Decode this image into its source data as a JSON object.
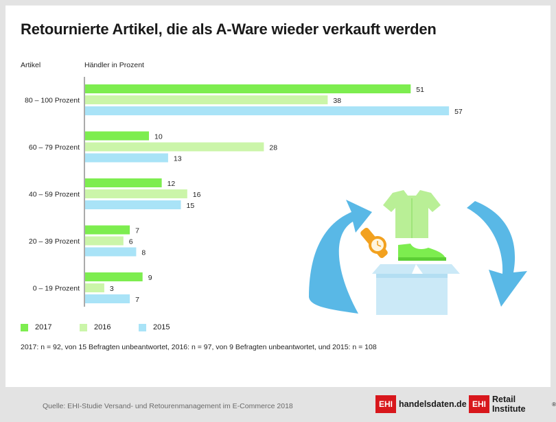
{
  "title": "Retournierte Artikel, die als A-Ware wieder verkauft werden",
  "headers": {
    "category": "Artikel",
    "value": "Händler in Prozent"
  },
  "colors": {
    "2017": "#7ded4f",
    "2016": "#cbf5a9",
    "2015": "#a9e3f7",
    "illustration_blue": "#59b8e6",
    "illustration_green": "#9fe57a",
    "illustration_orange": "#f2a11f",
    "brand_red": "#d8171c"
  },
  "chart_data": {
    "type": "bar",
    "orientation": "horizontal",
    "title": "Retournierte Artikel, die als A-Ware wieder verkauft werden",
    "xlabel": "Händler in Prozent",
    "ylabel": "Artikel",
    "categories": [
      "80 – 100 Prozent",
      "60 – 79 Prozent",
      "40 – 59 Prozent",
      "20 – 39 Prozent",
      "0 – 19 Prozent"
    ],
    "series": [
      {
        "name": "2017",
        "values": [
          51,
          10,
          12,
          7,
          9
        ]
      },
      {
        "name": "2016",
        "values": [
          38,
          28,
          16,
          6,
          3
        ]
      },
      {
        "name": "2015",
        "values": [
          57,
          13,
          15,
          8,
          7
        ]
      }
    ],
    "xlim": [
      0,
      60
    ],
    "grid": false,
    "legend_position": "bottom-left"
  },
  "legend": [
    {
      "label": "2017"
    },
    {
      "label": "2016"
    },
    {
      "label": "2015"
    }
  ],
  "note": "2017: n = 92, von 15 Befragten unbeantwortet, 2016: n = 97, von 9 Befragten unbeantwortet, und 2015: n = 108",
  "footer": {
    "source": "Quelle: EHI-Studie Versand- und Retourenmanagement im E-Commerce 2018",
    "logo1": {
      "box": "EHI",
      "text": "handelsdaten.de"
    },
    "logo2": {
      "box": "EHI",
      "text": "Retail Institute"
    },
    "registered": "®"
  }
}
